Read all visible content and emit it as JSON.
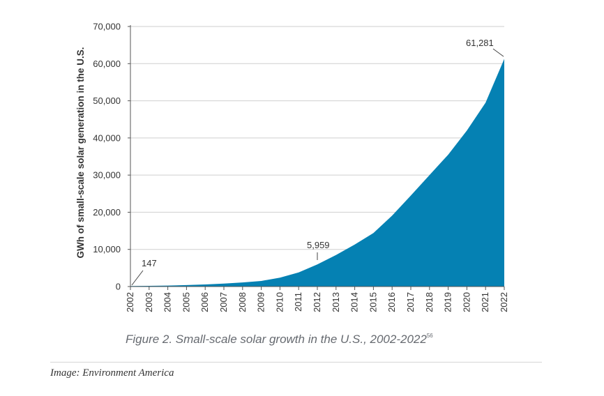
{
  "chart_data": {
    "type": "area",
    "x": [
      "2002",
      "2003",
      "2004",
      "2005",
      "2006",
      "2007",
      "2008",
      "2009",
      "2010",
      "2011",
      "2012",
      "2013",
      "2014",
      "2015",
      "2016",
      "2017",
      "2018",
      "2019",
      "2020",
      "2021",
      "2022"
    ],
    "series": [
      {
        "values": [
          147,
          190,
          260,
          400,
          560,
          800,
          1100,
          1500,
          2400,
          3800,
          5959,
          8500,
          11300,
          14400,
          19100,
          24500,
          30000,
          35500,
          42000,
          49500,
          61281
        ]
      }
    ],
    "ylabel": "GWh of small-scale solar generation in the U.S.",
    "xlabel": "",
    "ylim": [
      0,
      70000
    ],
    "yticks": [
      "0",
      "10,000",
      "20,000",
      "30,000",
      "40,000",
      "50,000",
      "60,000",
      "70,000"
    ],
    "grid": "horizontal",
    "fill_color": "#0581b3",
    "annotations": [
      {
        "label": "147",
        "year": "2002"
      },
      {
        "label": "5,959",
        "year": "2012"
      },
      {
        "label": "61,281",
        "year": "2022"
      }
    ]
  },
  "caption": {
    "text": "Figure 2. Small-scale solar growth in the U.S., 2002-2022",
    "footnote": "56"
  },
  "credit": "Image: Environment America"
}
